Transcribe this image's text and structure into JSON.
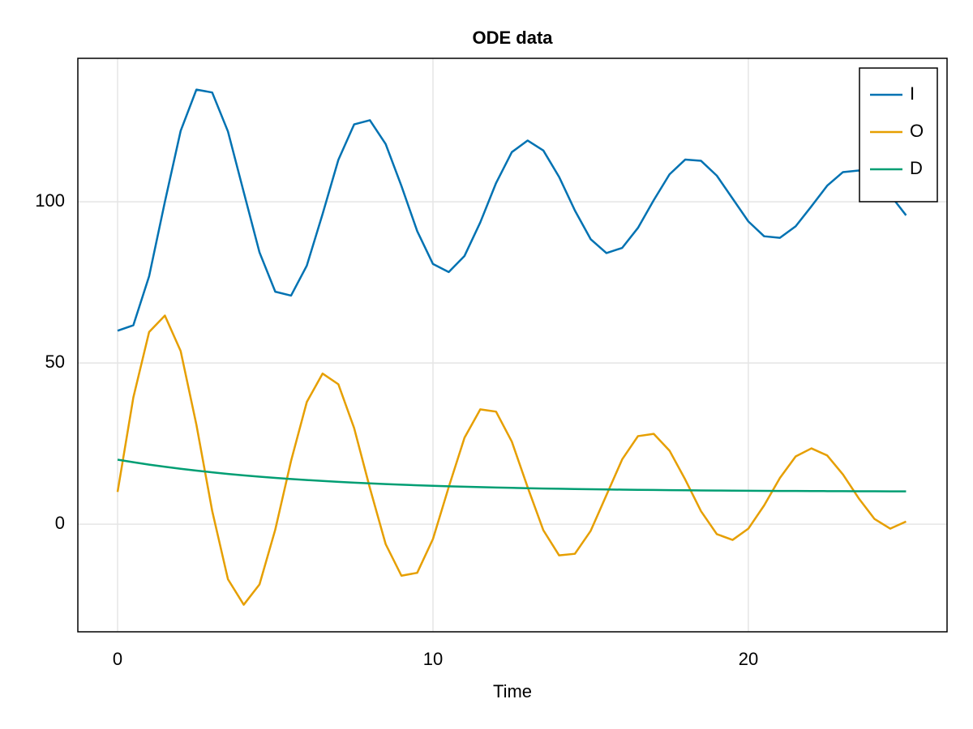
{
  "chart_data": {
    "type": "line",
    "title": "ODE data",
    "xlabel": "Time",
    "x": [
      0,
      0.5,
      1,
      1.5,
      2,
      2.5,
      3,
      3.5,
      4,
      4.5,
      5,
      5.5,
      6,
      6.5,
      7,
      7.5,
      8,
      8.5,
      9,
      9.5,
      10,
      10.5,
      11,
      11.5,
      12,
      12.5,
      13,
      13.5,
      14,
      14.5,
      15,
      15.5,
      16,
      16.5,
      17,
      17.5,
      18,
      18.5,
      19,
      19.5,
      20,
      20.5,
      21,
      21.5,
      22,
      22.5,
      23,
      23.5,
      24,
      24.5,
      25
    ],
    "series": [
      {
        "name": "I",
        "color": "#0072b2",
        "values": [
          60,
          61.7,
          76.9,
          100.0,
          122.0,
          134.8,
          133.9,
          121.8,
          103,
          84.3,
          72.1,
          70.9,
          80.2,
          96.2,
          113.0,
          124.0,
          125.3,
          117.9,
          104.9,
          90.9,
          80.7,
          78.2,
          83.2,
          93.6,
          105.8,
          115.4,
          119,
          115.9,
          107.7,
          97.3,
          88.4,
          84.1,
          85.7,
          91.9,
          100.5,
          108.5,
          113.1,
          112.7,
          108.1,
          101,
          93.9,
          89.3,
          88.8,
          92.4,
          98.6,
          105.0,
          109.2,
          109.7,
          107.0,
          102.1,
          95.8
        ]
      },
      {
        "name": "O",
        "color": "#e69f00",
        "values": [
          10,
          39.3,
          59.6,
          64.7,
          53.7,
          30.8,
          4.1,
          -17.1,
          -25,
          -18.7,
          -1.7,
          19.6,
          37.9,
          46.7,
          43.4,
          29.8,
          11.2,
          -6.2,
          -16.0,
          -15.1,
          -4.6,
          11.5,
          26.8,
          35.6,
          34.9,
          25.6,
          11.5,
          -1.9,
          -9.7,
          -9.2,
          -2.1,
          9.0,
          20.1,
          27.3,
          28.0,
          22.8,
          13.8,
          4.0,
          -3.1,
          -4.9,
          -1.4,
          5.8,
          14.3,
          21.0,
          23.5,
          21.3,
          15.4,
          8.0,
          1.6,
          -1.4,
          0.8
        ]
      },
      {
        "name": "D",
        "color": "#009e73",
        "values": [
          20,
          19.2,
          18.46,
          17.79,
          17.17,
          16.59,
          16.07,
          15.58,
          15.13,
          14.72,
          14.35,
          14.0,
          13.68,
          13.39,
          13.11,
          12.87,
          12.64,
          12.43,
          12.23,
          12.05,
          11.89,
          11.74,
          11.6,
          11.47,
          11.35,
          11.25,
          11.15,
          11.05,
          10.97,
          10.89,
          10.82,
          10.76,
          10.7,
          10.64,
          10.59,
          10.54,
          10.5,
          10.46,
          10.42,
          10.39,
          10.36,
          10.33,
          10.3,
          10.28,
          10.26,
          10.24,
          10.22,
          10.2,
          10.18,
          10.17,
          10.16
        ]
      }
    ],
    "xlim": [
      -1.26,
      26.3
    ],
    "ylim": [
      -33.4,
      144.5
    ],
    "xticks": [
      0,
      10,
      20
    ],
    "yticks": [
      0,
      50,
      100
    ],
    "grid": true,
    "legend": "top-right"
  }
}
